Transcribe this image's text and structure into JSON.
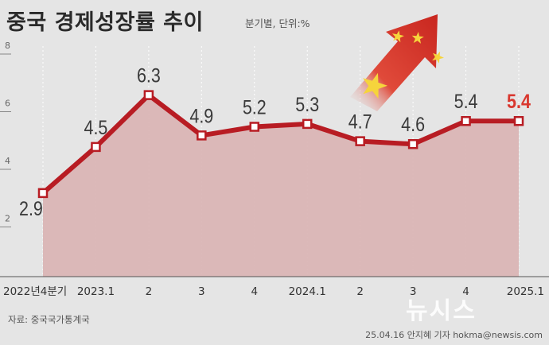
{
  "title": "중국 경제성장률 추이",
  "unit_note": "분기별, 단위:%",
  "source": "자료: 중국국가통계국",
  "byline": "25.04.16 안지혜 기자 hokma@newsis.com",
  "watermark": "뉴시스",
  "colors": {
    "line": "#b81c23",
    "area": "#d9b3b3",
    "highlight_label": "#d9382f",
    "label": "#3a3a3a",
    "flag_red": "#d9302b",
    "flag_star": "#f6d43c"
  },
  "chart_data": {
    "type": "area",
    "categories": [
      "2022년4분기",
      "2023.1",
      "2",
      "3",
      "4",
      "2024.1",
      "2",
      "3",
      "4",
      "2025.1"
    ],
    "values": [
      2.9,
      4.5,
      6.3,
      4.9,
      5.2,
      5.3,
      4.7,
      4.6,
      5.4,
      5.4
    ],
    "value_labels": [
      "2.9",
      "4.5",
      "6.3",
      "4.9",
      "5.2",
      "5.3",
      "4.7",
      "4.6",
      "5.4",
      "5.4"
    ],
    "highlight_last": true,
    "y_ticks": [
      2,
      4,
      6,
      8
    ],
    "ylim": [
      0,
      8
    ],
    "grid": "vertical dotted"
  }
}
